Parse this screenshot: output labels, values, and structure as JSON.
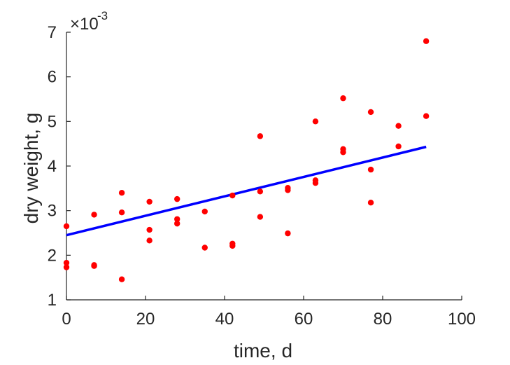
{
  "chart_data": {
    "type": "scatter",
    "xlabel": "time, d",
    "ylabel": "dry weight, g",
    "exponent_label": "×10",
    "exponent_power": "-3",
    "xlim": [
      0,
      100
    ],
    "ylim": [
      1,
      7
    ],
    "x_ticks": [
      "0",
      "20",
      "40",
      "60",
      "80",
      "100"
    ],
    "y_ticks": [
      "1",
      "2",
      "3",
      "4",
      "5",
      "6",
      "7"
    ],
    "grid": false,
    "colors": {
      "points": "#ff0000",
      "fit_line": "#0000ff",
      "axes": "#262626"
    },
    "series": [
      {
        "type": "scatter",
        "x": [
          0,
          0,
          0,
          7,
          7,
          7,
          14,
          14,
          14,
          21,
          21,
          21,
          28,
          28,
          28,
          35,
          35,
          42,
          42,
          42,
          49,
          49,
          49,
          56,
          56,
          56,
          63,
          63,
          63,
          70,
          70,
          70,
          77,
          77,
          77,
          84,
          84,
          91,
          91
        ],
        "y": [
          2.65,
          1.83,
          1.73,
          2.91,
          1.78,
          1.76,
          3.4,
          2.96,
          1.46,
          3.2,
          2.57,
          2.33,
          3.26,
          2.81,
          2.71,
          2.98,
          2.17,
          3.34,
          2.26,
          2.21,
          4.67,
          3.43,
          2.86,
          3.51,
          3.46,
          2.49,
          5.0,
          3.68,
          3.62,
          5.52,
          4.38,
          4.31,
          5.21,
          3.92,
          3.18,
          4.9,
          4.44,
          6.8,
          5.12
        ]
      },
      {
        "type": "line",
        "x": [
          0,
          91
        ],
        "y": [
          2.45,
          4.43
        ]
      }
    ]
  }
}
